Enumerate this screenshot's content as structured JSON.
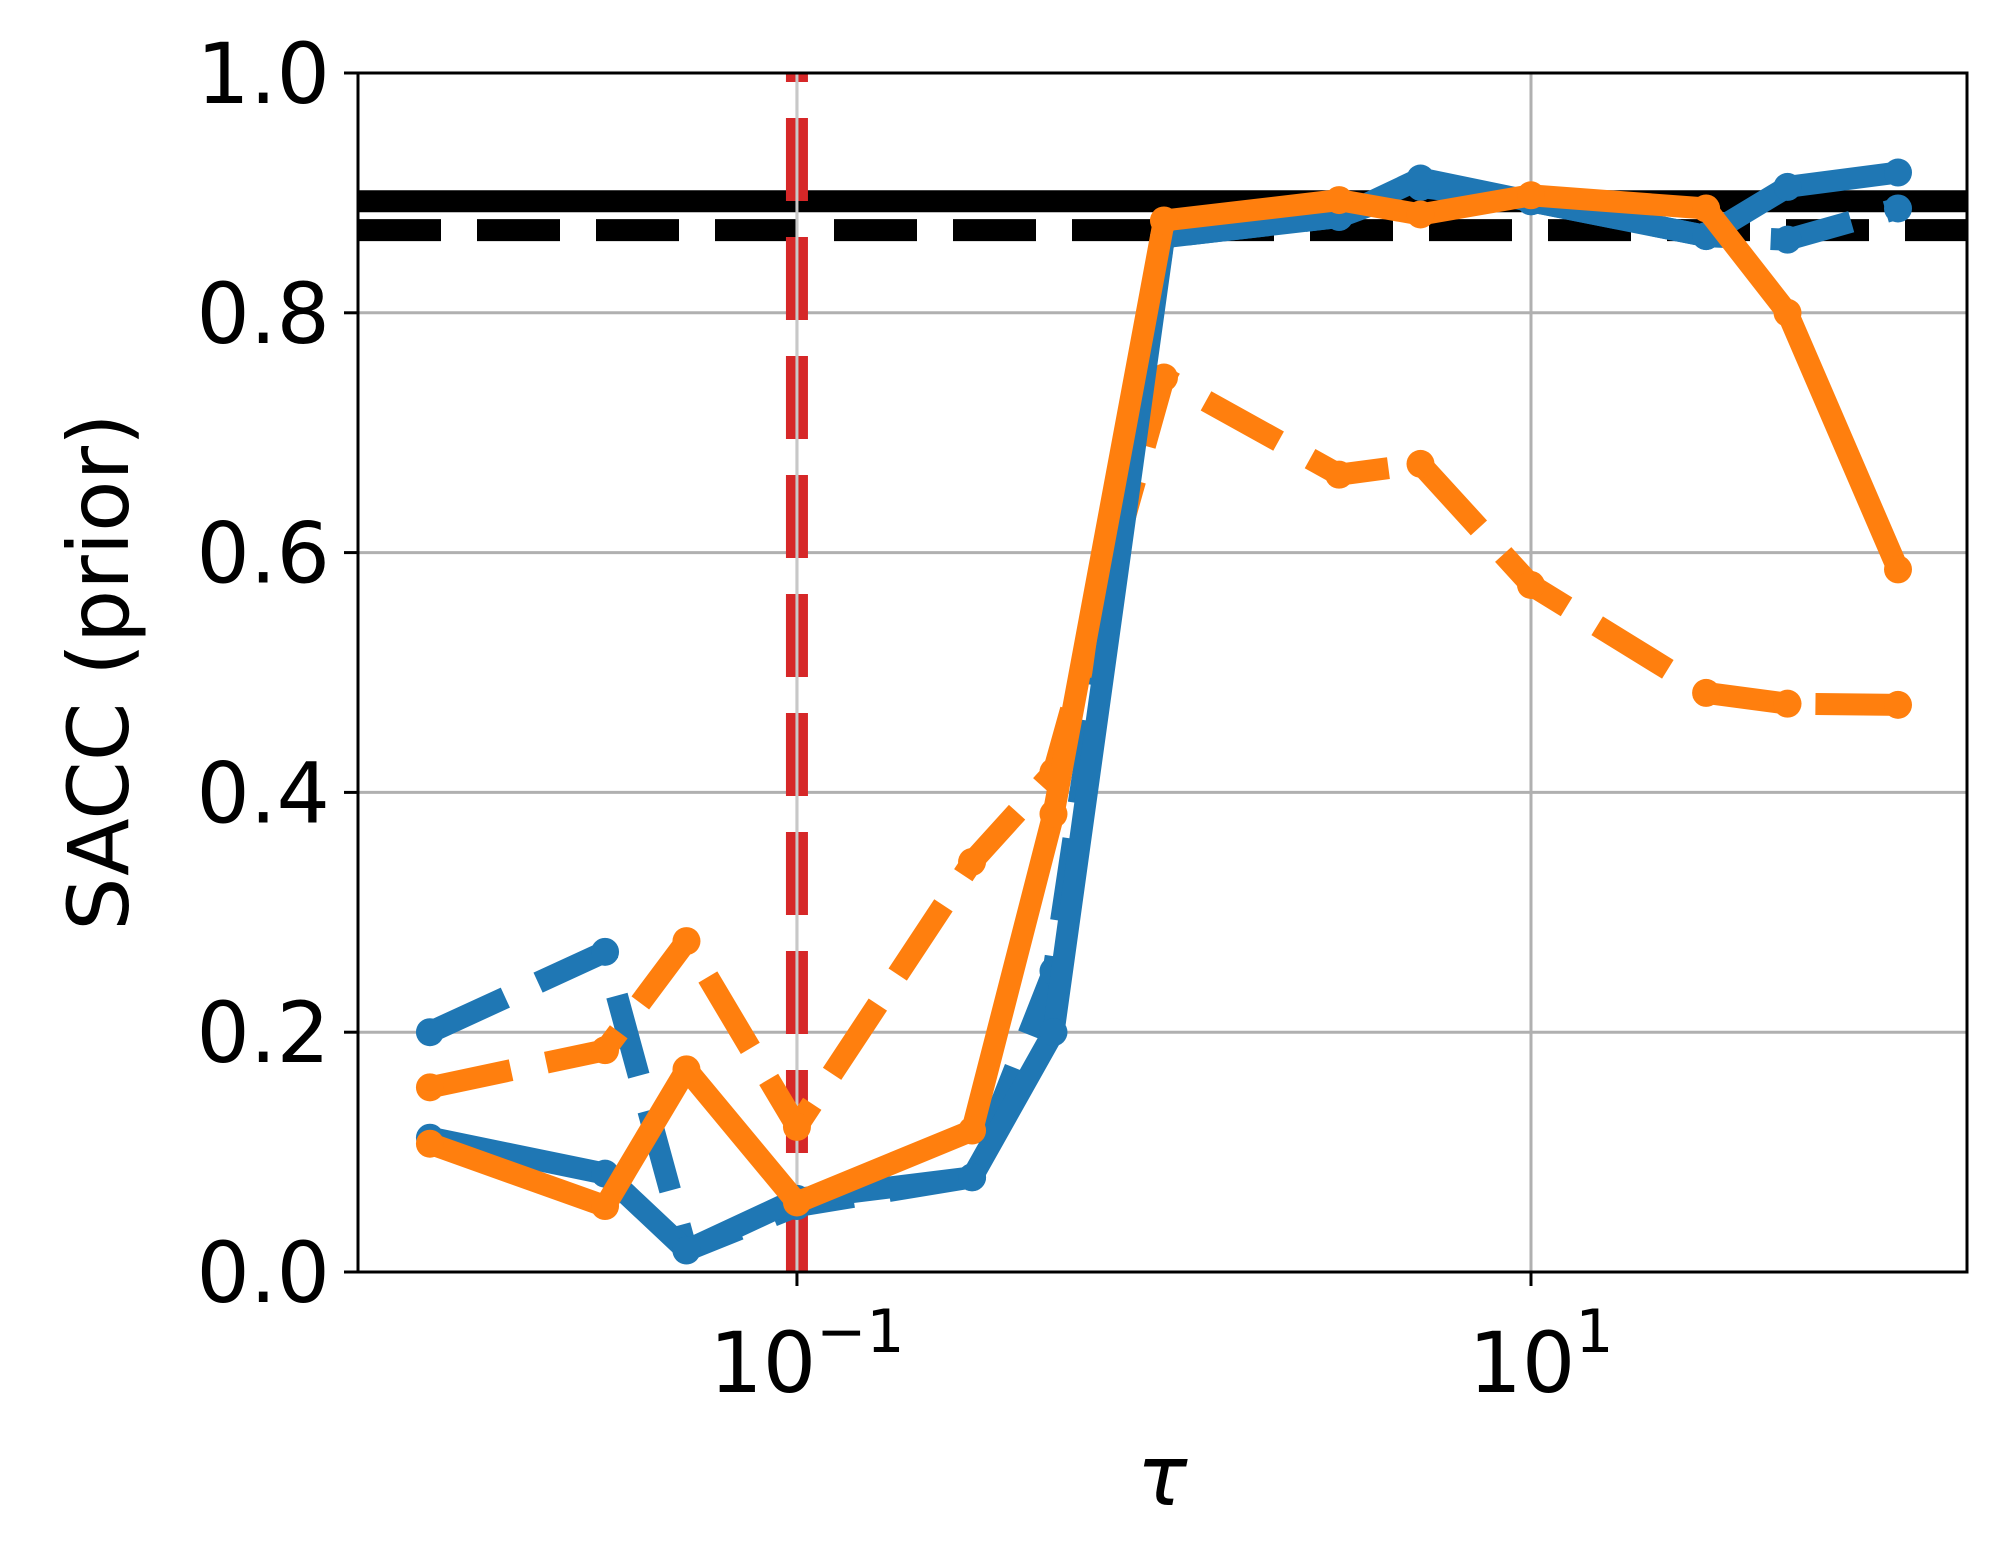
{
  "chart_data": {
    "type": "line",
    "title": "",
    "xlabel": "τ",
    "ylabel": "SACC (prior)",
    "xscale": "log",
    "xlim_log10": [
      -2.196,
      2.188
    ],
    "ylim": [
      0.0,
      1.0
    ],
    "grid": true,
    "legend": null,
    "x_tick_labels": [
      {
        "value": 0.1,
        "base": "10",
        "exp": "−1"
      },
      {
        "value": 10,
        "base": "10",
        "exp": "1"
      }
    ],
    "y_tick_labels": [
      "0.0",
      "0.2",
      "0.4",
      "0.6",
      "0.8",
      "1.0"
    ],
    "y_ticks": [
      0.0,
      0.2,
      0.4,
      0.6,
      0.8,
      1.0
    ],
    "x": [
      0.01,
      0.03,
      0.05,
      0.1,
      0.3,
      0.5,
      1,
      3,
      5,
      10,
      30,
      50,
      100
    ],
    "series": [
      {
        "name": "blue-solid",
        "color": "#1f77b4",
        "linestyle": "solid",
        "values": [
          0.112,
          0.082,
          0.018,
          0.061,
          0.079,
          0.2,
          0.863,
          0.88,
          0.912,
          0.893,
          0.864,
          0.905,
          0.917
        ]
      },
      {
        "name": "blue-dashed",
        "color": "#1f77b4",
        "linestyle": "dashed",
        "values": [
          0.2,
          0.267,
          0.018,
          0.055,
          0.079,
          0.251,
          0.863,
          0.88,
          0.905,
          0.893,
          0.864,
          0.861,
          0.887
        ]
      },
      {
        "name": "orange-solid",
        "color": "#ff7f0e",
        "linestyle": "solid",
        "values": [
          0.107,
          0.055,
          0.169,
          0.058,
          0.118,
          0.382,
          0.877,
          0.894,
          0.882,
          0.898,
          0.887,
          0.8,
          0.586
        ]
      },
      {
        "name": "orange-dashed",
        "color": "#ff7f0e",
        "linestyle": "dashed",
        "values": [
          0.154,
          0.185,
          0.276,
          0.121,
          0.342,
          0.417,
          0.746,
          0.665,
          0.674,
          0.573,
          0.483,
          0.474,
          0.473
        ]
      }
    ],
    "reference_lines": [
      {
        "orientation": "horizontal",
        "y": 0.893,
        "color": "#000000",
        "linestyle": "solid"
      },
      {
        "orientation": "horizontal",
        "y": 0.869,
        "color": "#000000",
        "linestyle": "dashed"
      },
      {
        "orientation": "vertical",
        "x": 0.1,
        "color": "#d62728",
        "linestyle": "dashed"
      }
    ]
  }
}
